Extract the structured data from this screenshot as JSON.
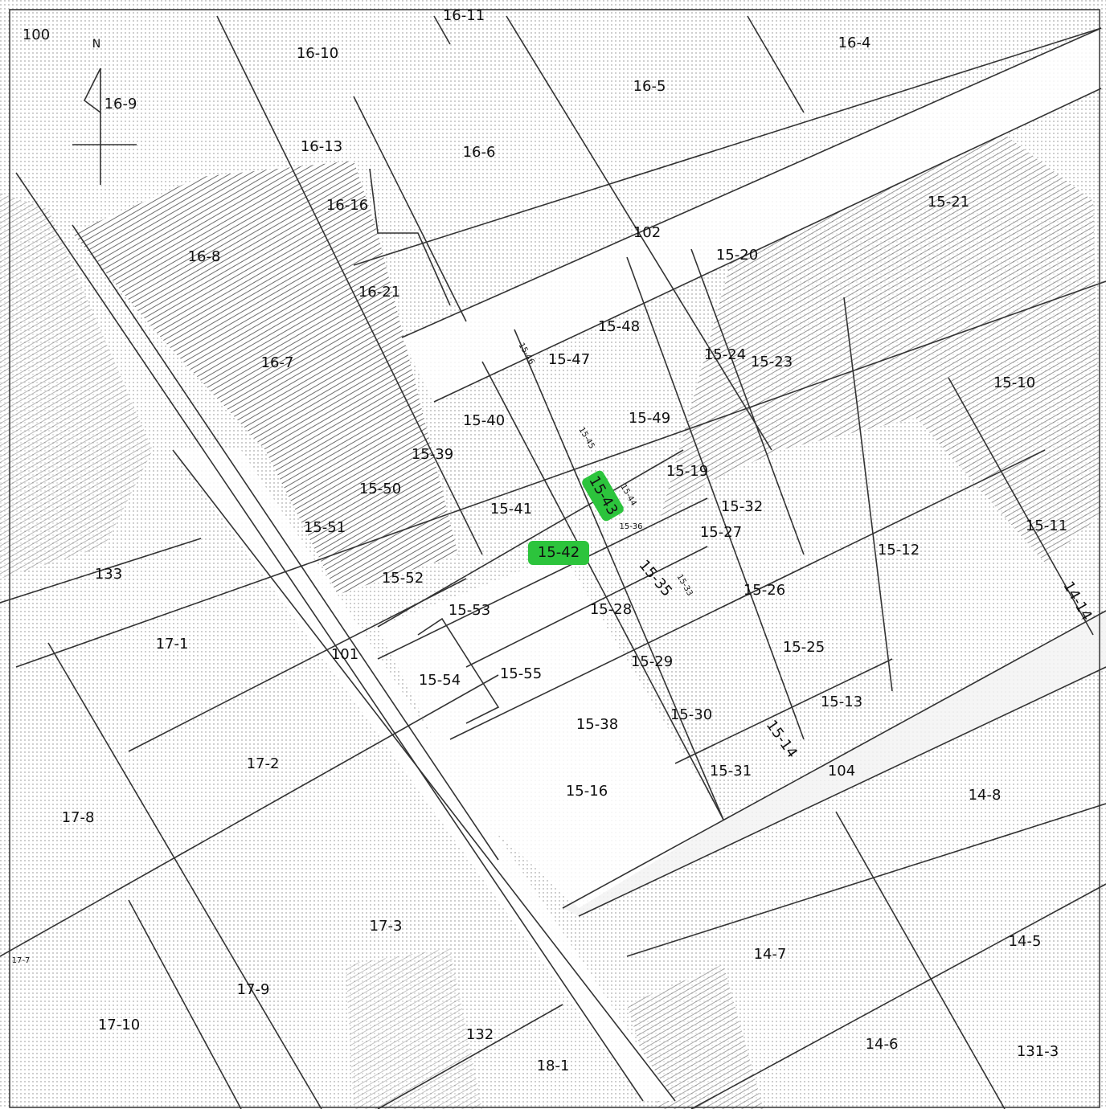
{
  "map": {
    "labels": [
      "100",
      "N",
      "16-11",
      "16-10",
      "16-4",
      "16-9",
      "16-5",
      "16-13",
      "16-6",
      "16-16",
      "15-21",
      "102",
      "16-8",
      "15-20",
      "16-21",
      "15-48",
      "15-47",
      "15-24",
      "15-23",
      "16-7",
      "15-10",
      "15-40",
      "15-49",
      "15-39",
      "15-19",
      "15-50",
      "15-43",
      "15-41",
      "15-32",
      "15-51",
      "15-27",
      "15-11",
      "15-12",
      "15-42",
      "133",
      "15-52",
      "15-35",
      "15-26",
      "14-14",
      "15-53",
      "15-28",
      "17-1",
      "15-25",
      "101",
      "15-29",
      "15-55",
      "15-54",
      "15-13",
      "15-30",
      "15-38",
      "15-14",
      "17-2",
      "15-31",
      "104",
      "15-16",
      "14-8",
      "17-8",
      "17-3",
      "14-7",
      "14-5",
      "17-9",
      "17-10",
      "132",
      "14-6",
      "131-3",
      "18-1",
      "15-46",
      "15-45",
      "15-44",
      "15-36",
      "15-33",
      "17-7"
    ]
  }
}
